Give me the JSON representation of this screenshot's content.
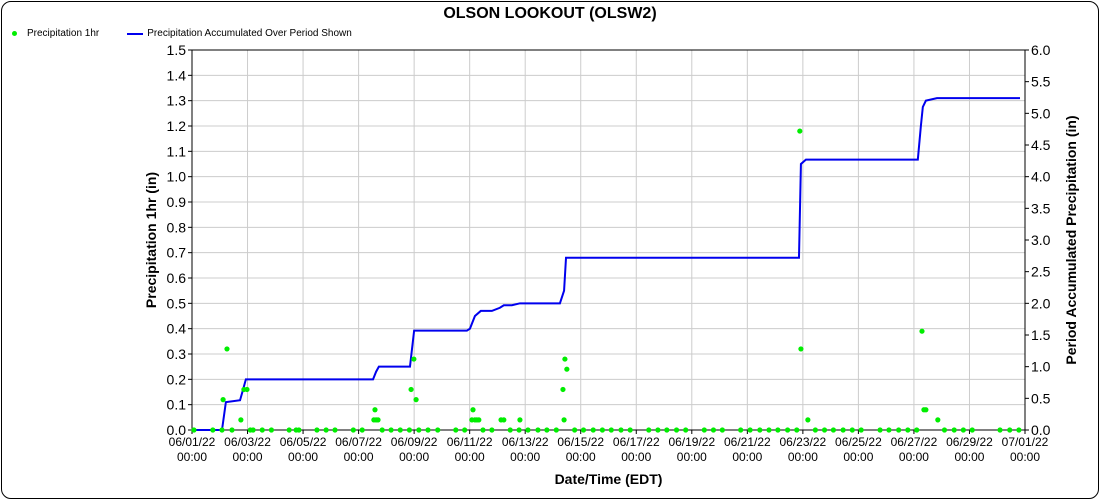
{
  "chart_data": {
    "type": "scatter+line",
    "title": "OLSON LOOKOUT (OLSW2)",
    "xlabel": "Date/Time (EDT)",
    "ylabel": "Precipitation 1hr (in)",
    "y2label": "Period Accumulated Precipitation (in)",
    "ylim": [
      0,
      1.5
    ],
    "y2lim": [
      0,
      6
    ],
    "xlim_days": [
      0,
      30
    ],
    "x_unit": "days since 06/01/22 00:00",
    "yticks": [
      "0.0",
      "0.1",
      "0.2",
      "0.3",
      "0.4",
      "0.5",
      "0.6",
      "0.7",
      "0.8",
      "0.9",
      "1.0",
      "1.1",
      "1.2",
      "1.3",
      "1.4",
      "1.5"
    ],
    "y2ticks": [
      "0.0",
      "0.5",
      "1.0",
      "1.5",
      "2.0",
      "2.5",
      "3.0",
      "3.5",
      "4.0",
      "4.5",
      "5.0",
      "5.5",
      "6.0"
    ],
    "xticks": [
      {
        "date": "06/01/22",
        "time": "00:00"
      },
      {
        "date": "06/03/22",
        "time": "00:00"
      },
      {
        "date": "06/05/22",
        "time": "00:00"
      },
      {
        "date": "06/07/22",
        "time": "00:00"
      },
      {
        "date": "06/09/22",
        "time": "00:00"
      },
      {
        "date": "06/11/22",
        "time": "00:00"
      },
      {
        "date": "06/13/22",
        "time": "00:00"
      },
      {
        "date": "06/15/22",
        "time": "00:00"
      },
      {
        "date": "06/17/22",
        "time": "00:00"
      },
      {
        "date": "06/19/22",
        "time": "00:00"
      },
      {
        "date": "06/21/22",
        "time": "00:00"
      },
      {
        "date": "06/23/22",
        "time": "00:00"
      },
      {
        "date": "06/25/22",
        "time": "00:00"
      },
      {
        "date": "06/27/22",
        "time": "00:00"
      },
      {
        "date": "06/29/22",
        "time": "00:00"
      },
      {
        "date": "07/01/22",
        "time": "00:00"
      }
    ],
    "legend": {
      "position": "top-left",
      "entries": [
        "Precipitation 1hr",
        "Precipitation Accumulated Over Period Shown"
      ]
    },
    "colors": {
      "hourly": "#00ee00",
      "accum": "#0000ee",
      "grid": "#cccccc"
    },
    "series": [
      {
        "name": "Precipitation 1hr",
        "axis": "left",
        "points": [
          [
            1.12,
            0.12
          ],
          [
            1.26,
            0.32
          ],
          [
            1.76,
            0.04
          ],
          [
            1.87,
            0.16
          ],
          [
            1.98,
            0.16
          ],
          [
            6.55,
            0.04
          ],
          [
            6.59,
            0.08
          ],
          [
            6.63,
            0.04
          ],
          [
            6.7,
            0.04
          ],
          [
            7.89,
            0.16
          ],
          [
            7.99,
            0.28
          ],
          [
            8.07,
            0.12
          ],
          [
            10.08,
            0.04
          ],
          [
            10.12,
            0.08
          ],
          [
            10.19,
            0.04
          ],
          [
            10.26,
            0.04
          ],
          [
            10.33,
            0.04
          ],
          [
            11.13,
            0.04
          ],
          [
            11.23,
            0.04
          ],
          [
            11.81,
            0.04
          ],
          [
            13.36,
            0.16
          ],
          [
            13.4,
            0.04
          ],
          [
            13.43,
            0.28
          ],
          [
            13.5,
            0.24
          ],
          [
            21.89,
            1.18
          ],
          [
            21.93,
            0.32
          ],
          [
            22.18,
            0.04
          ],
          [
            26.29,
            0.39
          ],
          [
            26.36,
            0.08
          ],
          [
            26.43,
            0.08
          ],
          [
            26.86,
            0.04
          ]
        ],
        "zero_days": [
          0.07,
          0.75,
          1.08,
          1.44,
          2.1,
          2.2,
          2.53,
          2.86,
          3.5,
          3.75,
          3.85,
          4.5,
          4.83,
          5.15,
          5.81,
          6.13,
          6.85,
          7.17,
          7.5,
          7.83,
          8.17,
          8.5,
          8.85,
          9.5,
          9.82,
          10.48,
          10.8,
          11.46,
          11.78,
          12.1,
          12.46,
          12.78,
          13.12,
          13.78,
          14.1,
          14.45,
          14.78,
          15.1,
          15.45,
          15.78,
          16.45,
          16.78,
          17.1,
          17.45,
          17.78,
          18.45,
          18.78,
          19.1,
          19.76,
          20.1,
          20.45,
          20.78,
          21.1,
          21.45,
          21.78,
          22.45,
          22.78,
          23.1,
          23.45,
          23.78,
          24.1,
          24.78,
          25.1,
          25.45,
          25.78,
          26.1,
          27.1,
          27.45,
          27.78,
          28.1,
          29.1,
          29.45,
          29.78
        ]
      },
      {
        "name": "Precipitation Accumulated Over Period Shown",
        "axis": "right",
        "points": [
          [
            0,
            0
          ],
          [
            1.08,
            0
          ],
          [
            1.22,
            0.44
          ],
          [
            1.73,
            0.47
          ],
          [
            1.84,
            0.64
          ],
          [
            1.94,
            0.8
          ],
          [
            6.52,
            0.8
          ],
          [
            6.63,
            0.92
          ],
          [
            6.73,
            1.0
          ],
          [
            7.85,
            1.0
          ],
          [
            8.0,
            1.57
          ],
          [
            9.9,
            1.57
          ],
          [
            10.01,
            1.6
          ],
          [
            10.19,
            1.8
          ],
          [
            10.4,
            1.88
          ],
          [
            10.8,
            1.88
          ],
          [
            11.09,
            1.93
          ],
          [
            11.23,
            1.97
          ],
          [
            11.52,
            1.97
          ],
          [
            11.81,
            2.0
          ],
          [
            13.25,
            2.0
          ],
          [
            13.4,
            2.2
          ],
          [
            13.47,
            2.72
          ],
          [
            21.86,
            2.72
          ],
          [
            21.93,
            4.2
          ],
          [
            22.11,
            4.27
          ],
          [
            26.14,
            4.27
          ],
          [
            26.25,
            4.8
          ],
          [
            26.32,
            5.1
          ],
          [
            26.43,
            5.2
          ],
          [
            26.83,
            5.24
          ],
          [
            29.82,
            5.24
          ]
        ]
      }
    ]
  }
}
